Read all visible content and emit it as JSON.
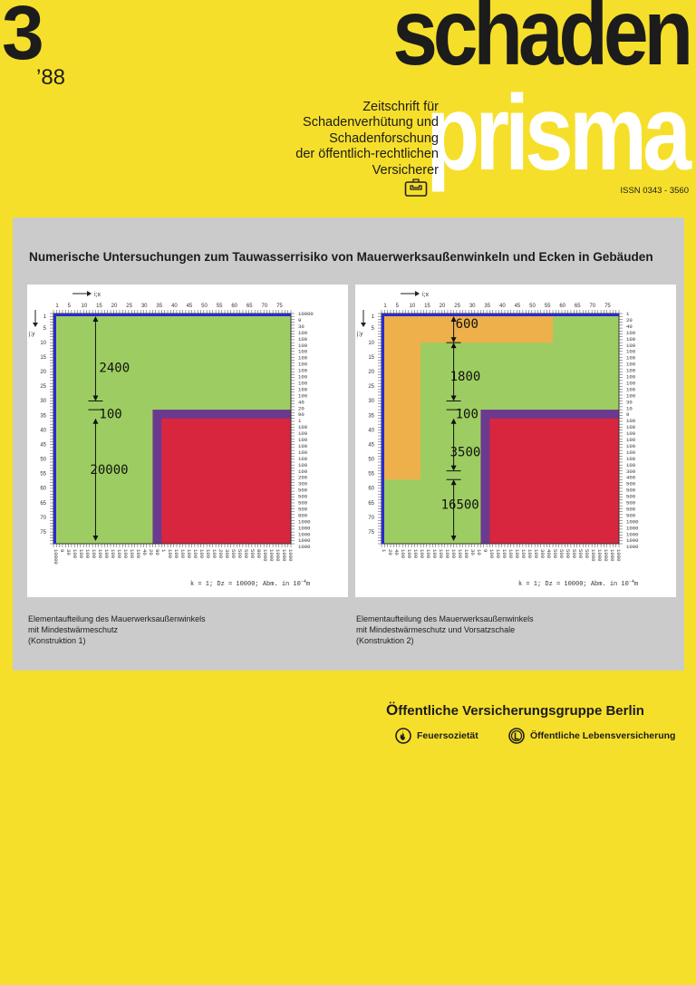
{
  "issue": {
    "number": "3",
    "year": "’88"
  },
  "masthead": {
    "line1": "schaden",
    "line2": "prisma"
  },
  "subtitle": [
    "Zeitschrift für",
    "Schadenverhütung und",
    "Schadenforschung",
    "der öffentlich-rechtlichen",
    "Versicherer"
  ],
  "issn": "ISSN 0343 - 3560",
  "article_title": "Numerische Untersuchungen zum Tauwasserrisiko von Mauerwerksaußenwinkeln und Ecken in Gebäuden",
  "colors": {
    "background": "#f6df2a",
    "panel": "#cbcbcb",
    "green": "#9dcd62",
    "orange": "#edb04a",
    "red": "#d8263e",
    "purple": "#6b3a8f",
    "blue": "#2a2ad0"
  },
  "figure_common": {
    "axis_i": "i;x",
    "axis_j": "j;y",
    "top_ticks": [
      "1",
      "5",
      "10",
      "15",
      "20",
      "25",
      "30",
      "35",
      "40",
      "45",
      "50",
      "55",
      "60",
      "65",
      "70",
      "75"
    ],
    "left_ticks": [
      "1",
      "5",
      "10",
      "15",
      "20",
      "25",
      "30",
      "35",
      "40",
      "45",
      "50",
      "55",
      "60",
      "65",
      "70",
      "75"
    ],
    "right_values_1": [
      "10000",
      "9",
      "30",
      "100",
      "100",
      "100",
      "100",
      "100",
      "100",
      "100",
      "100",
      "100",
      "100",
      "100",
      "40",
      "20",
      "90",
      "1",
      "100",
      "100",
      "100",
      "100",
      "100",
      "100",
      "100",
      "100",
      "200",
      "300",
      "500",
      "500",
      "500",
      "500",
      "800",
      "1000",
      "1000",
      "1000",
      "1000",
      "1000"
    ],
    "right_values_2": [
      "1",
      "20",
      "40",
      "100",
      "100",
      "100",
      "100",
      "100",
      "100",
      "100",
      "100",
      "100",
      "100",
      "100",
      "30",
      "10",
      "9",
      "100",
      "100",
      "100",
      "100",
      "100",
      "100",
      "100",
      "100",
      "300",
      "400",
      "500",
      "500",
      "500",
      "500",
      "500",
      "500",
      "1000",
      "1000",
      "1000",
      "1000",
      "1000"
    ],
    "formula": "k = 1;  Dz = 10000;  Abm. in 10",
    "formula_exp": "-4",
    "formula_unit": "m"
  },
  "figures": [
    {
      "labels": [
        "2400",
        "100",
        "20000"
      ],
      "caption": [
        "Elementaufteilung des Mauerwerksaußenwinkels",
        "mit Mindestwärmeschutz",
        "(Konstruktion 1)"
      ]
    },
    {
      "labels": [
        "600",
        "1800",
        "100",
        "3500",
        "16500"
      ],
      "caption": [
        "Elementaufteilung des Mauerwerksaußenwinkels",
        "mit Mindestwärmeschutz und Vorsatzschale",
        "(Konstruktion 2)"
      ]
    }
  ],
  "publisher": {
    "first_letter": "Ö",
    "rest": "ffentliche Versicherungsgruppe Berlin",
    "sub1": "Feuersozietät",
    "sub2": "Öffentliche Lebensversicherung"
  }
}
